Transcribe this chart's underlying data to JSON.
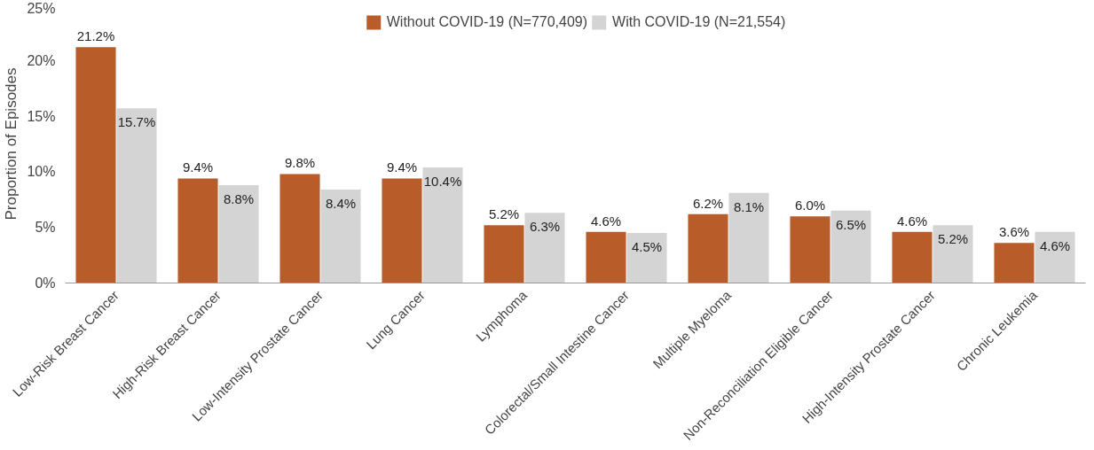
{
  "chart_data": {
    "type": "bar",
    "ylabel": "Proportion of Episodes",
    "categories": [
      "Low-Risk Breast Cancer",
      "High-Risk Breast Cancer",
      "Low-Intensity Prostate Cancer",
      "Lung Cancer",
      "Lymphoma",
      "Colorectal/Small Intestine Cancer",
      "Multiple Myeloma",
      "Non-Reconciliation Eligible Cancer",
      "High-Intensity Prostate Cancer",
      "Chronic Leukemia"
    ],
    "series": [
      {
        "name": "Without COVID-19 (N=770,409)",
        "color": "#b85c2a",
        "values": [
          21.2,
          9.4,
          9.8,
          9.4,
          5.2,
          4.6,
          6.2,
          6.0,
          4.6,
          3.6
        ],
        "value_labels": [
          "21.2%",
          "9.4%",
          "9.8%",
          "9.4%",
          "5.2%",
          "4.6%",
          "6.2%",
          "6.0%",
          "4.6%",
          "3.6%"
        ]
      },
      {
        "name": "With COVID-19 (N=21,554)",
        "color": "#d4d4d4",
        "values": [
          15.7,
          8.8,
          8.4,
          10.4,
          6.3,
          4.5,
          8.1,
          6.5,
          5.2,
          4.6
        ],
        "value_labels": [
          "15.7%",
          "8.8%",
          "8.4%",
          "10.4%",
          "6.3%",
          "4.5%",
          "8.1%",
          "6.5%",
          "5.2%",
          "4.6%"
        ]
      }
    ],
    "ylim": [
      0,
      25
    ],
    "yticks": [
      {
        "value": 0,
        "label": "0%"
      },
      {
        "value": 5,
        "label": "5%"
      },
      {
        "value": 10,
        "label": "10%"
      },
      {
        "value": 15,
        "label": "15%"
      },
      {
        "value": 20,
        "label": "20%"
      },
      {
        "value": 25,
        "label": "25%"
      }
    ],
    "grid": false,
    "legend": "top"
  }
}
